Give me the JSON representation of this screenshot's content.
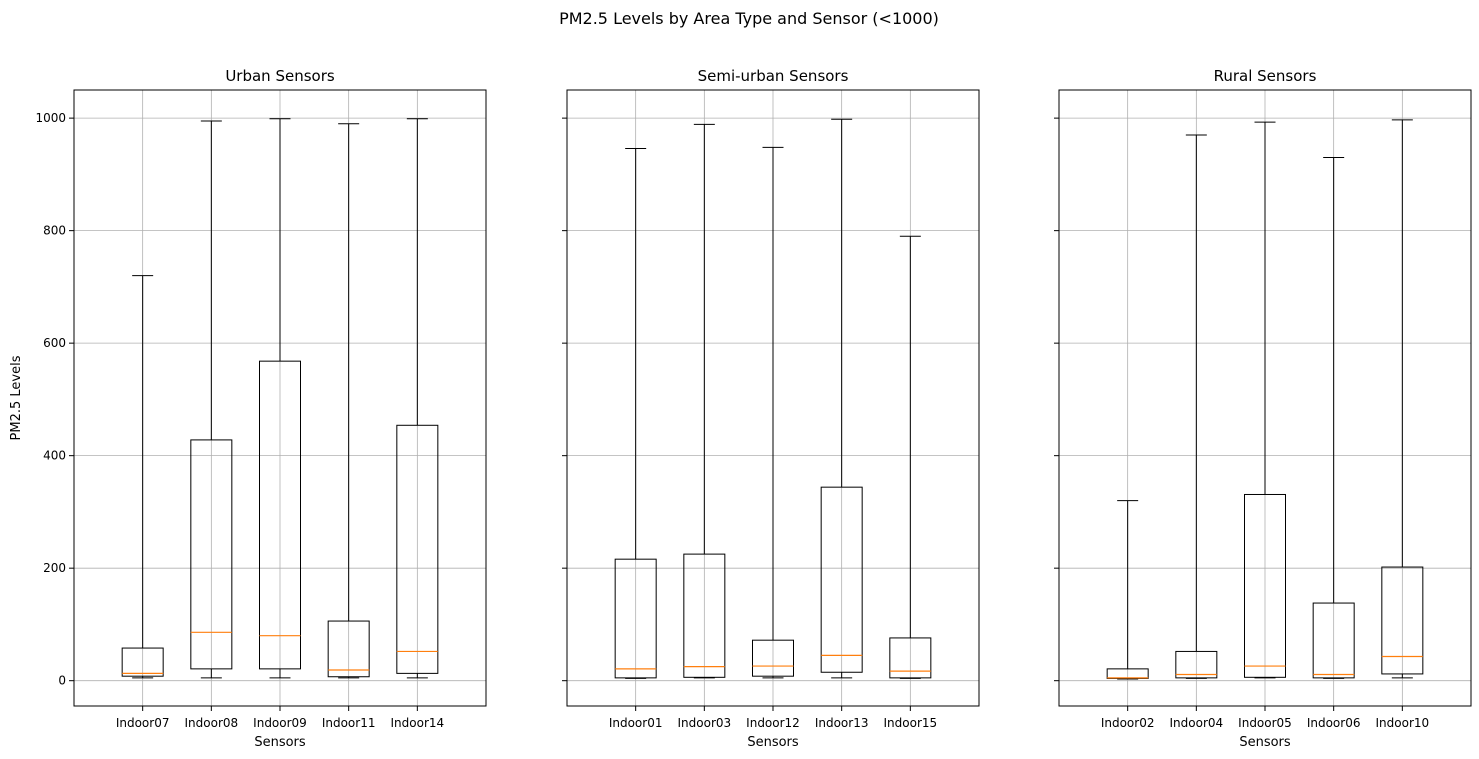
{
  "figure": {
    "suptitle": "PM2.5 Levels by Area Type and Sensor (<1000)"
  },
  "colors": {
    "box": "#000000",
    "median": "#ff7f0e",
    "grid": "#b0b0b0",
    "background": "#ffffff"
  },
  "chart_data": [
    {
      "type": "box",
      "title": "Urban Sensors",
      "xlabel": "Sensors",
      "ylabel": "PM2.5 Levels",
      "ylim": [
        -45,
        1050
      ],
      "yticks": [
        0,
        200,
        400,
        600,
        800,
        1000
      ],
      "grid": true,
      "categories": [
        "Indoor07",
        "Indoor08",
        "Indoor09",
        "Indoor11",
        "Indoor14"
      ],
      "boxes": [
        {
          "whislo": 5,
          "q1": 8,
          "med": 13,
          "q3": 58,
          "whishi": 720
        },
        {
          "whislo": 5,
          "q1": 21,
          "med": 86,
          "q3": 428,
          "whishi": 995
        },
        {
          "whislo": 5,
          "q1": 21,
          "med": 80,
          "q3": 568,
          "whishi": 999
        },
        {
          "whislo": 5,
          "q1": 7,
          "med": 19,
          "q3": 106,
          "whishi": 990
        },
        {
          "whislo": 5,
          "q1": 13,
          "med": 52,
          "q3": 454,
          "whishi": 999
        }
      ]
    },
    {
      "type": "box",
      "title": "Semi-urban Sensors",
      "xlabel": "Sensors",
      "ylabel": "",
      "ylim": [
        -45,
        1050
      ],
      "yticks": [
        0,
        200,
        400,
        600,
        800,
        1000
      ],
      "grid": true,
      "categories": [
        "Indoor01",
        "Indoor03",
        "Indoor12",
        "Indoor13",
        "Indoor15"
      ],
      "boxes": [
        {
          "whislo": 4,
          "q1": 5,
          "med": 21,
          "q3": 216,
          "whishi": 946
        },
        {
          "whislo": 5,
          "q1": 6,
          "med": 25,
          "q3": 225,
          "whishi": 989
        },
        {
          "whislo": 5,
          "q1": 8,
          "med": 26,
          "q3": 72,
          "whishi": 948
        },
        {
          "whislo": 5,
          "q1": 15,
          "med": 45,
          "q3": 344,
          "whishi": 998
        },
        {
          "whislo": 4,
          "q1": 5,
          "med": 17,
          "q3": 76,
          "whishi": 790
        }
      ]
    },
    {
      "type": "box",
      "title": "Rural Sensors",
      "xlabel": "Sensors",
      "ylabel": "",
      "ylim": [
        -45,
        1050
      ],
      "yticks": [
        0,
        200,
        400,
        600,
        800,
        1000
      ],
      "grid": true,
      "categories": [
        "Indoor02",
        "Indoor04",
        "Indoor05",
        "Indoor06",
        "Indoor10"
      ],
      "boxes": [
        {
          "whislo": 3,
          "q1": 4,
          "med": 5,
          "q3": 21,
          "whishi": 320
        },
        {
          "whislo": 4,
          "q1": 5,
          "med": 11,
          "q3": 52,
          "whishi": 970
        },
        {
          "whislo": 5,
          "q1": 6,
          "med": 26,
          "q3": 331,
          "whishi": 993
        },
        {
          "whislo": 4,
          "q1": 5,
          "med": 11,
          "q3": 138,
          "whishi": 930
        },
        {
          "whislo": 5,
          "q1": 12,
          "med": 43,
          "q3": 202,
          "whishi": 997
        }
      ]
    }
  ]
}
